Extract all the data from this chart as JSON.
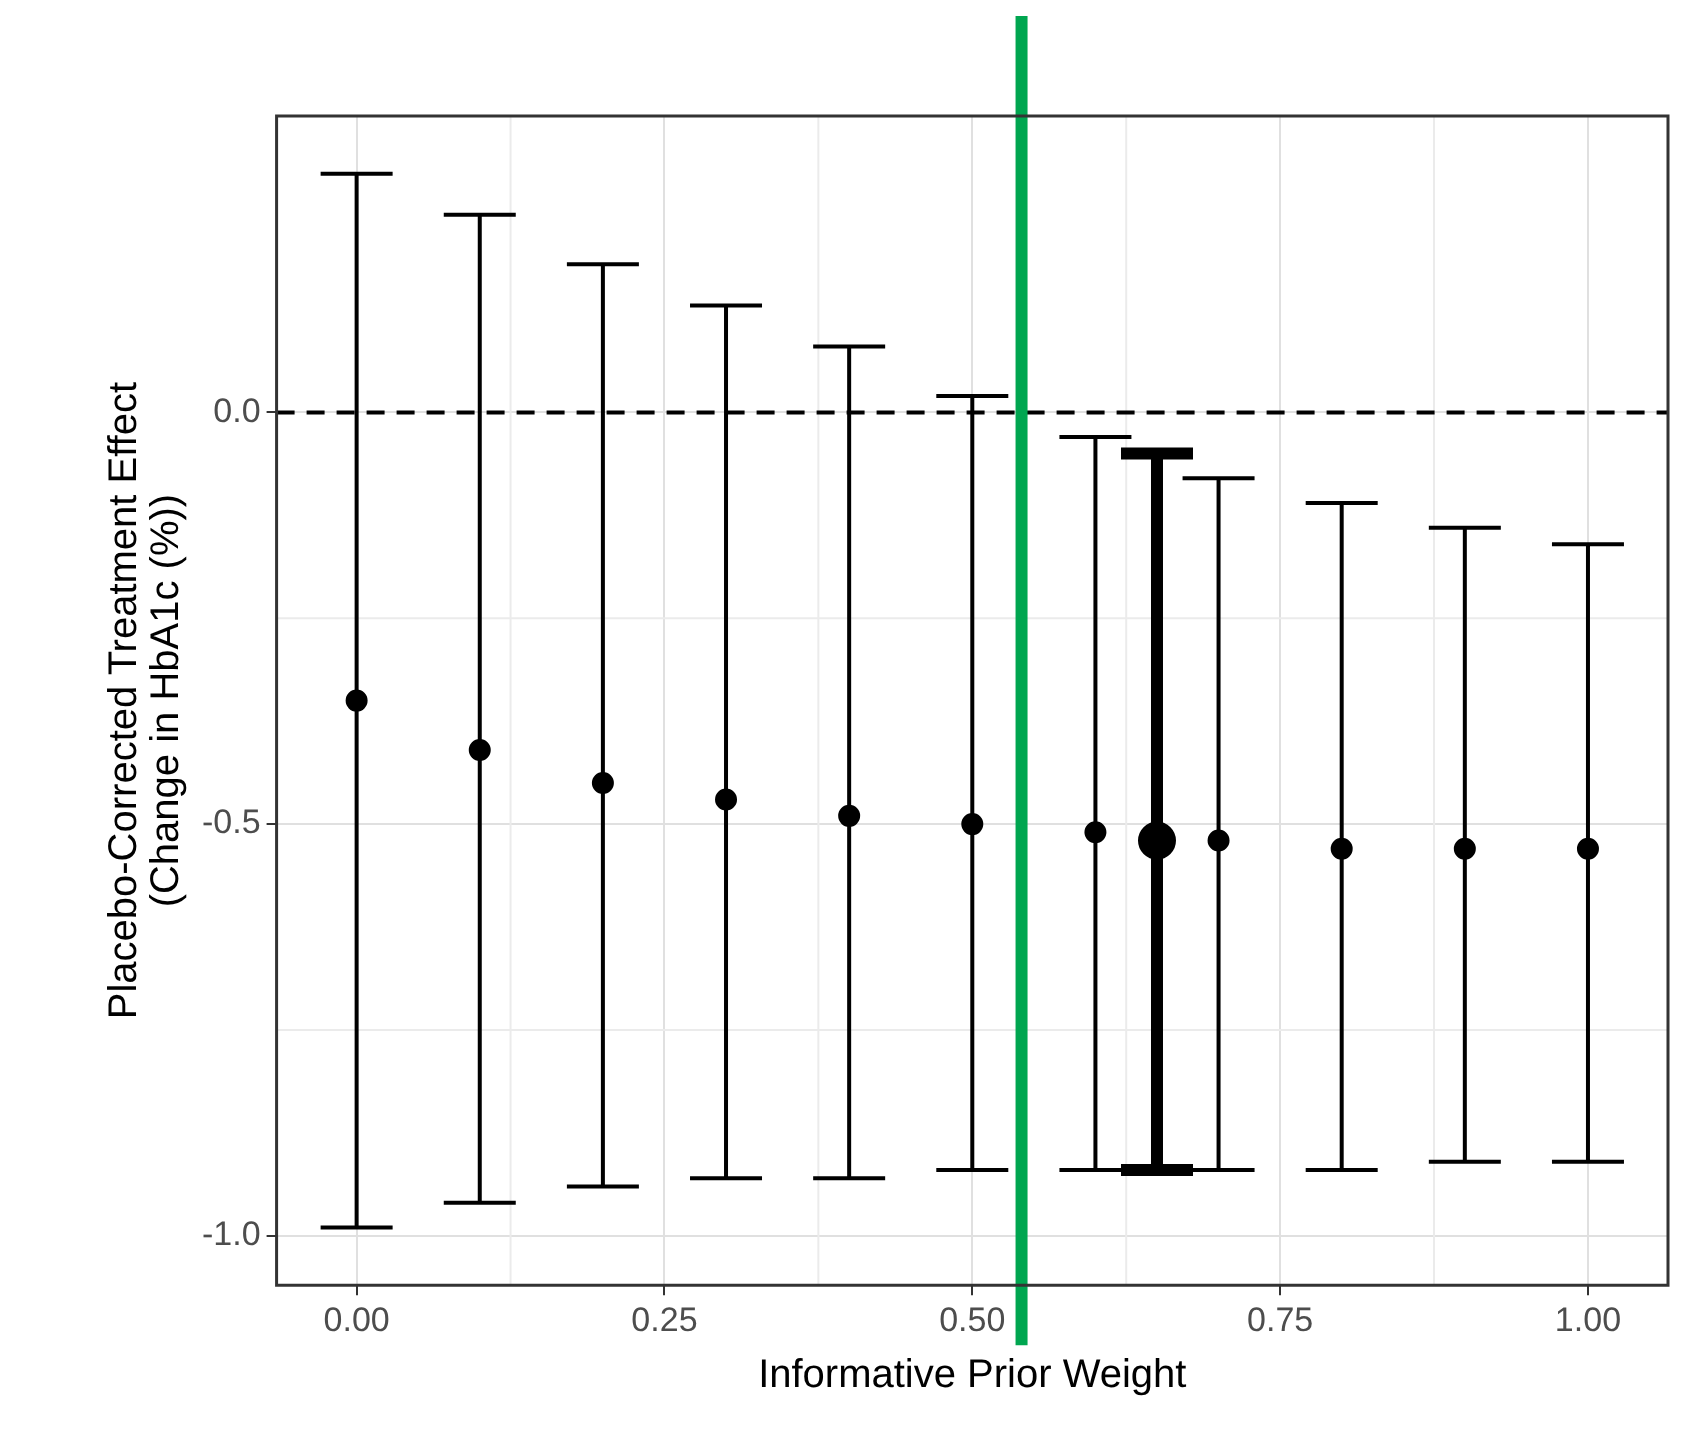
{
  "chart_data": {
    "type": "scatter",
    "xlabel": "Informative Prior Weight",
    "ylabel": "Placebo-Corrected Treatment Effect\n(Change in HbA1c (%))",
    "xlim": [
      -0.065,
      1.065
    ],
    "ylim": [
      -1.06,
      0.36
    ],
    "xticks": [
      {
        "value": 0,
        "label": "0.00"
      },
      {
        "value": 0.25,
        "label": "0.25"
      },
      {
        "value": 0.5,
        "label": "0.50"
      },
      {
        "value": 0.75,
        "label": "0.75"
      },
      {
        "value": 1,
        "label": "1.00"
      }
    ],
    "yticks": [
      {
        "value": -1,
        "label": "-1.0"
      },
      {
        "value": -0.5,
        "label": "-0.5"
      },
      {
        "value": 0,
        "label": "0.0"
      }
    ],
    "grid": true,
    "marker": "circle",
    "series": [
      {
        "color": "#000000",
        "x": [
          0,
          0.1,
          0.2,
          0.3,
          0.4,
          0.5,
          0.6,
          0.7,
          0.8,
          0.9,
          1.0
        ],
        "values": [
          -0.35,
          -0.41,
          -0.45,
          -0.47,
          -0.49,
          -0.5,
          -0.51,
          -0.52,
          -0.53,
          -0.53,
          -0.53
        ],
        "errors": [
          [
            -0.99,
            0.29
          ],
          [
            -0.96,
            0.24
          ],
          [
            -0.94,
            0.18
          ],
          [
            -0.93,
            0.13
          ],
          [
            -0.93,
            0.08
          ],
          [
            -0.92,
            0.02
          ],
          [
            -0.92,
            -0.03
          ],
          [
            -0.92,
            -0.08
          ],
          [
            -0.92,
            -0.11
          ],
          [
            -0.91,
            -0.14
          ],
          [
            -0.91,
            -0.16
          ]
        ]
      },
      {
        "color": "#000000",
        "x": [
          0.65
        ],
        "values": [
          -0.52
        ],
        "errors": [
          [
            -0.92,
            -0.05
          ]
        ]
      }
    ],
    "ref_lines": [
      {
        "axis": "y",
        "value": 0,
        "color": "#000000",
        "line_style": "dashed"
      },
      {
        "axis": "x",
        "value": 0.54,
        "color": "#00a650",
        "line_style": "solid"
      }
    ]
  }
}
